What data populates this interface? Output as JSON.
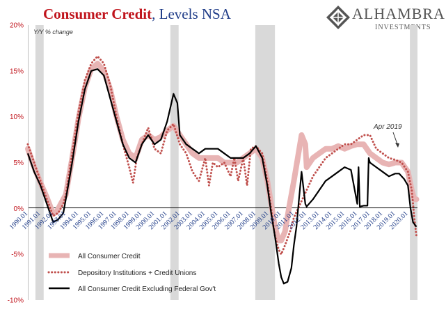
{
  "title": {
    "part1": "Consumer Credit",
    "part2": ", Levels NSA"
  },
  "logo": {
    "name": "ALHAMBRA",
    "sub": "INVESTMENTS",
    "icon": "diamond-lattice-icon"
  },
  "chart_data": {
    "type": "line",
    "ylabel": "Y/Y % change",
    "ylim": [
      -10,
      20
    ],
    "xlim": [
      1990.0,
      2020.75
    ],
    "y_ticks": [
      "20%",
      "15%",
      "10%",
      "5%",
      "0%",
      "-5%",
      "-10%"
    ],
    "x_ticks": [
      "1990.01",
      "1991.01",
      "1992.01",
      "1993.01",
      "1994.01",
      "1995.01",
      "1996.01",
      "1997.01",
      "1998.01",
      "1999.01",
      "2000.01",
      "2001.01",
      "2002.01",
      "2003.01",
      "2004.01",
      "2005.01",
      "2006.01",
      "2007.01",
      "2008.01",
      "2009.01",
      "2010.01",
      "2011.01",
      "2012.01",
      "2013.01",
      "2014.01",
      "2015.01",
      "2016.01",
      "2017.01",
      "2018.01",
      "2019.01",
      "2020.01"
    ],
    "recessions": [
      [
        1990.6,
        1991.25
      ],
      [
        2001.25,
        2001.9
      ],
      [
        2007.95,
        2009.5
      ],
      [
        2020.15,
        2020.75
      ]
    ],
    "annotation": {
      "text": "Apr 2019",
      "x": 2019.3,
      "y": 6.7
    },
    "grid": false,
    "legend_position": "bottom-left",
    "colors": {
      "total": "#e8b4b4",
      "depository": "#c0504d",
      "exfed": "#000000",
      "recession": "#d9d9d9"
    },
    "series": [
      {
        "name": "All Consumer Credit",
        "style": "thick-line",
        "points": [
          [
            1990.0,
            6.5
          ],
          [
            1990.5,
            4.5
          ],
          [
            1991.0,
            2.8
          ],
          [
            1991.5,
            1.2
          ],
          [
            1992.0,
            -0.6
          ],
          [
            1992.3,
            -0.3
          ],
          [
            1992.6,
            0.5
          ],
          [
            1993.0,
            1.5
          ],
          [
            1993.5,
            5.5
          ],
          [
            1994.0,
            9.8
          ],
          [
            1994.5,
            13.2
          ],
          [
            1995.0,
            15.2
          ],
          [
            1995.5,
            15.8
          ],
          [
            1996.0,
            15.0
          ],
          [
            1996.5,
            13.0
          ],
          [
            1997.0,
            10.0
          ],
          [
            1997.5,
            7.5
          ],
          [
            1998.0,
            6.0
          ],
          [
            1998.5,
            5.5
          ],
          [
            1999.0,
            7.5
          ],
          [
            1999.5,
            8.0
          ],
          [
            2000.0,
            7.5
          ],
          [
            2000.5,
            7.8
          ],
          [
            2001.0,
            8.5
          ],
          [
            2001.5,
            9.0
          ],
          [
            2002.0,
            8.0
          ],
          [
            2002.5,
            7.0
          ],
          [
            2003.0,
            6.0
          ],
          [
            2003.5,
            5.5
          ],
          [
            2004.0,
            5.5
          ],
          [
            2004.5,
            5.5
          ],
          [
            2005.0,
            5.5
          ],
          [
            2005.5,
            5.0
          ],
          [
            2006.0,
            5.0
          ],
          [
            2006.5,
            5.0
          ],
          [
            2007.0,
            5.5
          ],
          [
            2007.5,
            6.0
          ],
          [
            2008.0,
            6.5
          ],
          [
            2008.5,
            5.5
          ],
          [
            2008.9,
            3.0
          ],
          [
            2009.2,
            0.5
          ],
          [
            2009.5,
            -2.0
          ],
          [
            2009.8,
            -3.5
          ],
          [
            2010.0,
            -3.5
          ],
          [
            2010.3,
            -2.5
          ],
          [
            2010.6,
            0.0
          ],
          [
            2011.0,
            3.0
          ],
          [
            2011.3,
            5.5
          ],
          [
            2011.6,
            8.0
          ],
          [
            2011.9,
            7.0
          ],
          [
            2012.0,
            4.5
          ],
          [
            2012.5,
            5.5
          ],
          [
            2013.0,
            6.0
          ],
          [
            2013.5,
            6.5
          ],
          [
            2014.0,
            6.5
          ],
          [
            2014.5,
            6.8
          ],
          [
            2015.0,
            6.5
          ],
          [
            2015.5,
            6.8
          ],
          [
            2016.0,
            7.0
          ],
          [
            2016.5,
            7.0
          ],
          [
            2017.0,
            6.0
          ],
          [
            2017.5,
            5.5
          ],
          [
            2018.0,
            5.0
          ],
          [
            2018.5,
            4.8
          ],
          [
            2019.0,
            5.0
          ],
          [
            2019.5,
            5.0
          ],
          [
            2020.0,
            4.0
          ],
          [
            2020.3,
            2.0
          ],
          [
            2020.5,
            1.0
          ],
          [
            2020.67,
            1.0
          ]
        ]
      },
      {
        "name": "Depository Institutions + Credit Unions",
        "style": "dotted",
        "points": [
          [
            1990.0,
            7.0
          ],
          [
            1990.5,
            5.0
          ],
          [
            1991.0,
            3.0
          ],
          [
            1991.5,
            1.0
          ],
          [
            1992.0,
            -0.8
          ],
          [
            1992.4,
            -0.5
          ],
          [
            1992.8,
            0.5
          ],
          [
            1993.0,
            1.5
          ],
          [
            1993.5,
            6.0
          ],
          [
            1994.0,
            10.5
          ],
          [
            1994.5,
            14.0
          ],
          [
            1995.0,
            15.8
          ],
          [
            1995.5,
            16.6
          ],
          [
            1996.0,
            15.8
          ],
          [
            1996.5,
            13.5
          ],
          [
            1997.0,
            10.0
          ],
          [
            1997.5,
            7.0
          ],
          [
            1998.0,
            4.5
          ],
          [
            1998.3,
            2.8
          ],
          [
            1998.6,
            5.5
          ],
          [
            1999.0,
            7.0
          ],
          [
            1999.5,
            8.8
          ],
          [
            2000.0,
            6.5
          ],
          [
            2000.5,
            6.0
          ],
          [
            2001.0,
            8.5
          ],
          [
            2001.5,
            9.2
          ],
          [
            2002.0,
            7.0
          ],
          [
            2002.5,
            6.0
          ],
          [
            2003.0,
            4.0
          ],
          [
            2003.5,
            3.0
          ],
          [
            2004.0,
            5.5
          ],
          [
            2004.3,
            2.5
          ],
          [
            2004.6,
            5.0
          ],
          [
            2005.0,
            4.5
          ],
          [
            2005.5,
            5.0
          ],
          [
            2006.0,
            3.5
          ],
          [
            2006.3,
            5.5
          ],
          [
            2006.6,
            3.0
          ],
          [
            2007.0,
            5.5
          ],
          [
            2007.3,
            2.5
          ],
          [
            2007.6,
            6.5
          ],
          [
            2008.0,
            6.8
          ],
          [
            2008.5,
            6.0
          ],
          [
            2008.9,
            3.0
          ],
          [
            2009.2,
            0.0
          ],
          [
            2009.5,
            -3.0
          ],
          [
            2009.8,
            -4.5
          ],
          [
            2010.0,
            -5.0
          ],
          [
            2010.3,
            -4.0
          ],
          [
            2010.7,
            -2.5
          ],
          [
            2011.0,
            -1.0
          ],
          [
            2011.5,
            0.5
          ],
          [
            2012.0,
            2.0
          ],
          [
            2012.5,
            3.5
          ],
          [
            2013.0,
            4.5
          ],
          [
            2013.5,
            5.5
          ],
          [
            2014.0,
            6.0
          ],
          [
            2014.5,
            6.5
          ],
          [
            2015.0,
            7.0
          ],
          [
            2015.5,
            7.0
          ],
          [
            2016.0,
            7.5
          ],
          [
            2016.5,
            8.0
          ],
          [
            2017.0,
            8.0
          ],
          [
            2017.5,
            6.5
          ],
          [
            2018.0,
            6.0
          ],
          [
            2018.5,
            5.5
          ],
          [
            2019.0,
            5.3
          ],
          [
            2019.5,
            5.0
          ],
          [
            2020.0,
            4.0
          ],
          [
            2020.3,
            2.0
          ],
          [
            2020.5,
            -1.0
          ],
          [
            2020.67,
            -3.0
          ]
        ]
      },
      {
        "name": "All Consumer Credit Excluding Federal Gov't",
        "style": "solid",
        "points": [
          [
            1990.0,
            6.0
          ],
          [
            1990.5,
            4.0
          ],
          [
            1991.0,
            2.5
          ],
          [
            1991.5,
            0.5
          ],
          [
            1992.0,
            -1.5
          ],
          [
            1992.4,
            -1.2
          ],
          [
            1992.8,
            -0.5
          ],
          [
            1993.0,
            1.0
          ],
          [
            1993.5,
            5.0
          ],
          [
            1994.0,
            9.5
          ],
          [
            1994.5,
            13.0
          ],
          [
            1995.0,
            15.0
          ],
          [
            1995.5,
            15.2
          ],
          [
            1996.0,
            14.5
          ],
          [
            1996.5,
            12.0
          ],
          [
            1997.0,
            9.5
          ],
          [
            1997.5,
            7.0
          ],
          [
            1998.0,
            5.5
          ],
          [
            1998.5,
            5.0
          ],
          [
            1999.0,
            7.0
          ],
          [
            1999.5,
            8.0
          ],
          [
            2000.0,
            7.0
          ],
          [
            2000.5,
            7.5
          ],
          [
            2001.0,
            9.5
          ],
          [
            2001.5,
            12.5
          ],
          [
            2001.8,
            11.5
          ],
          [
            2002.0,
            8.0
          ],
          [
            2002.5,
            7.0
          ],
          [
            2003.0,
            6.5
          ],
          [
            2003.5,
            6.0
          ],
          [
            2004.0,
            6.5
          ],
          [
            2004.5,
            6.5
          ],
          [
            2005.0,
            6.5
          ],
          [
            2005.5,
            6.0
          ],
          [
            2006.0,
            5.5
          ],
          [
            2006.5,
            5.5
          ],
          [
            2007.0,
            5.5
          ],
          [
            2007.5,
            6.0
          ],
          [
            2008.0,
            6.8
          ],
          [
            2008.5,
            5.5
          ],
          [
            2008.9,
            2.5
          ],
          [
            2009.2,
            -0.5
          ],
          [
            2009.5,
            -3.0
          ],
          [
            2009.8,
            -6.0
          ],
          [
            2010.0,
            -7.5
          ],
          [
            2010.2,
            -8.2
          ],
          [
            2010.5,
            -8.0
          ],
          [
            2010.8,
            -6.5
          ],
          [
            2011.0,
            -4.0
          ],
          [
            2011.2,
            -2.0
          ],
          [
            2011.4,
            1.0
          ],
          [
            2011.6,
            4.0
          ],
          [
            2011.9,
            0.5
          ],
          [
            2012.0,
            0.2
          ],
          [
            2012.5,
            1.0
          ],
          [
            2013.0,
            2.0
          ],
          [
            2013.5,
            3.0
          ],
          [
            2014.0,
            3.5
          ],
          [
            2014.5,
            4.0
          ],
          [
            2015.0,
            4.5
          ],
          [
            2015.5,
            4.2
          ],
          [
            2016.0,
            0.5
          ],
          [
            2016.1,
            4.5
          ],
          [
            2016.2,
            0.2
          ],
          [
            2016.5,
            0.3
          ],
          [
            2016.8,
            0.3
          ],
          [
            2016.9,
            5.5
          ],
          [
            2017.0,
            5.0
          ],
          [
            2017.5,
            4.5
          ],
          [
            2018.0,
            4.0
          ],
          [
            2018.5,
            3.5
          ],
          [
            2019.0,
            3.8
          ],
          [
            2019.3,
            3.8
          ],
          [
            2019.7,
            3.2
          ],
          [
            2020.0,
            2.5
          ],
          [
            2020.2,
            0.0
          ],
          [
            2020.4,
            -1.5
          ],
          [
            2020.67,
            -2.0
          ]
        ]
      }
    ]
  }
}
